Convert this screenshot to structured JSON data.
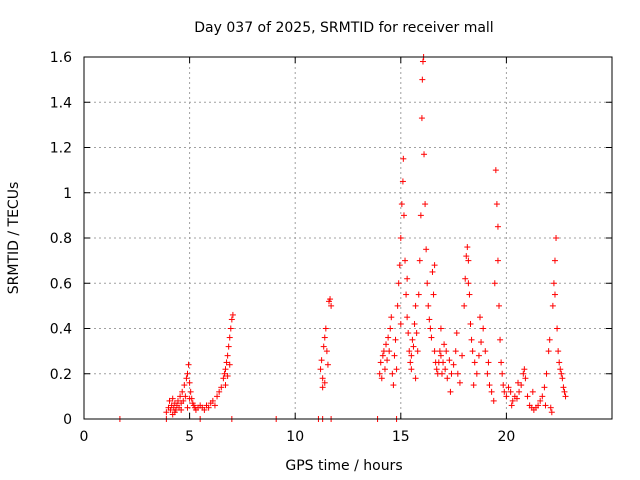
{
  "chart_data": {
    "type": "scatter",
    "title": "Day 037 of 2025, SRMTID for receiver mall",
    "xlabel": "GPS time / hours",
    "ylabel": "SRMTID / TECUs",
    "xlim": [
      0,
      25
    ],
    "ylim": [
      0,
      1.6
    ],
    "xticks": [
      0,
      5,
      10,
      15,
      20
    ],
    "xtick_labels": [
      "0",
      "5",
      "10",
      "15",
      "20"
    ],
    "yticks": [
      0,
      0.2,
      0.4,
      0.6,
      0.8,
      1,
      1.2,
      1.4,
      1.6
    ],
    "ytick_labels": [
      "0",
      "0.2",
      "0.4",
      "0.6",
      "0.8",
      "1",
      "1.2",
      "1.4",
      "1.6"
    ],
    "grid": true,
    "marker": "plus",
    "color": "#ff0000",
    "series": [
      {
        "name": "SRMTID",
        "points": [
          [
            1.7,
            0.0
          ],
          [
            3.9,
            0.0
          ],
          [
            5.5,
            0.0
          ],
          [
            7.0,
            0.0
          ],
          [
            9.1,
            0.0
          ],
          [
            11.1,
            0.0
          ],
          [
            11.3,
            0.0
          ],
          [
            11.7,
            0.0
          ],
          [
            13.9,
            0.0
          ],
          [
            14.8,
            0.0
          ],
          [
            3.9,
            0.03
          ],
          [
            4.0,
            0.05
          ],
          [
            4.05,
            0.08
          ],
          [
            4.1,
            0.04
          ],
          [
            4.15,
            0.06
          ],
          [
            4.2,
            0.09
          ],
          [
            4.25,
            0.05
          ],
          [
            4.3,
            0.07
          ],
          [
            4.35,
            0.04
          ],
          [
            4.4,
            0.06
          ],
          [
            4.45,
            0.08
          ],
          [
            4.5,
            0.05
          ],
          [
            4.55,
            0.1
          ],
          [
            4.6,
            0.07
          ],
          [
            4.65,
            0.12
          ],
          [
            4.7,
            0.08
          ],
          [
            4.75,
            0.15
          ],
          [
            4.8,
            0.1
          ],
          [
            4.85,
            0.18
          ],
          [
            4.9,
            0.2
          ],
          [
            4.95,
            0.24
          ],
          [
            5.0,
            0.16
          ],
          [
            5.05,
            0.12
          ],
          [
            5.1,
            0.09
          ],
          [
            5.15,
            0.07
          ],
          [
            5.2,
            0.06
          ],
          [
            5.25,
            0.05
          ],
          [
            5.3,
            0.04
          ],
          [
            5.4,
            0.05
          ],
          [
            5.5,
            0.06
          ],
          [
            5.6,
            0.05
          ],
          [
            5.7,
            0.04
          ],
          [
            5.8,
            0.06
          ],
          [
            5.9,
            0.05
          ],
          [
            6.0,
            0.07
          ],
          [
            6.1,
            0.08
          ],
          [
            6.2,
            0.06
          ],
          [
            6.3,
            0.1
          ],
          [
            6.4,
            0.12
          ],
          [
            6.5,
            0.14
          ],
          [
            6.6,
            0.18
          ],
          [
            6.65,
            0.2
          ],
          [
            6.7,
            0.22
          ],
          [
            6.75,
            0.25
          ],
          [
            6.8,
            0.28
          ],
          [
            6.85,
            0.32
          ],
          [
            6.9,
            0.36
          ],
          [
            6.95,
            0.4
          ],
          [
            7.0,
            0.44
          ],
          [
            7.05,
            0.46
          ],
          [
            6.7,
            0.15
          ],
          [
            6.8,
            0.19
          ],
          [
            6.9,
            0.24
          ],
          [
            4.2,
            0.02
          ],
          [
            4.3,
            0.03
          ],
          [
            4.6,
            0.04
          ],
          [
            4.9,
            0.05
          ],
          [
            5.0,
            0.09
          ],
          [
            11.2,
            0.22
          ],
          [
            11.25,
            0.26
          ],
          [
            11.3,
            0.18
          ],
          [
            11.35,
            0.32
          ],
          [
            11.4,
            0.36
          ],
          [
            11.45,
            0.4
          ],
          [
            11.5,
            0.3
          ],
          [
            11.55,
            0.24
          ],
          [
            11.4,
            0.16
          ],
          [
            11.3,
            0.14
          ],
          [
            11.6,
            0.52
          ],
          [
            11.65,
            0.53
          ],
          [
            11.7,
            0.5
          ],
          [
            14.0,
            0.2
          ],
          [
            14.05,
            0.25
          ],
          [
            14.1,
            0.18
          ],
          [
            14.15,
            0.28
          ],
          [
            14.2,
            0.3
          ],
          [
            14.25,
            0.22
          ],
          [
            14.3,
            0.33
          ],
          [
            14.35,
            0.26
          ],
          [
            14.4,
            0.36
          ],
          [
            14.45,
            0.3
          ],
          [
            14.5,
            0.4
          ],
          [
            14.55,
            0.45
          ],
          [
            14.6,
            0.2
          ],
          [
            14.65,
            0.15
          ],
          [
            14.7,
            0.28
          ],
          [
            14.75,
            0.35
          ],
          [
            14.8,
            0.22
          ],
          [
            14.85,
            0.5
          ],
          [
            14.9,
            0.6
          ],
          [
            14.95,
            0.68
          ],
          [
            15.0,
            0.8
          ],
          [
            15.05,
            0.95
          ],
          [
            15.1,
            1.05
          ],
          [
            15.12,
            1.15
          ],
          [
            15.15,
            0.9
          ],
          [
            15.2,
            0.7
          ],
          [
            15.25,
            0.55
          ],
          [
            15.3,
            0.45
          ],
          [
            15.35,
            0.38
          ],
          [
            15.4,
            0.3
          ],
          [
            15.45,
            0.25
          ],
          [
            15.5,
            0.28
          ],
          [
            15.55,
            0.35
          ],
          [
            15.6,
            0.32
          ],
          [
            15.65,
            0.42
          ],
          [
            15.7,
            0.5
          ],
          [
            15.75,
            0.38
          ],
          [
            15.8,
            0.3
          ],
          [
            15.85,
            0.55
          ],
          [
            15.9,
            0.7
          ],
          [
            15.95,
            0.9
          ],
          [
            16.0,
            1.33
          ],
          [
            16.02,
            1.5
          ],
          [
            16.05,
            1.58
          ],
          [
            16.08,
            1.6
          ],
          [
            16.1,
            1.17
          ],
          [
            16.15,
            0.95
          ],
          [
            16.2,
            0.75
          ],
          [
            16.25,
            0.6
          ],
          [
            16.3,
            0.5
          ],
          [
            16.35,
            0.44
          ],
          [
            16.4,
            0.4
          ],
          [
            16.45,
            0.36
          ],
          [
            16.5,
            0.65
          ],
          [
            16.55,
            0.55
          ],
          [
            16.6,
            0.3
          ],
          [
            16.65,
            0.25
          ],
          [
            16.7,
            0.22
          ],
          [
            16.75,
            0.2
          ],
          [
            16.8,
            0.25
          ],
          [
            16.85,
            0.3
          ],
          [
            16.9,
            0.28
          ],
          [
            16.95,
            0.2
          ],
          [
            17.0,
            0.25
          ],
          [
            17.1,
            0.22
          ],
          [
            17.2,
            0.18
          ],
          [
            17.3,
            0.26
          ],
          [
            17.4,
            0.2
          ],
          [
            17.5,
            0.24
          ],
          [
            17.6,
            0.3
          ],
          [
            17.7,
            0.2
          ],
          [
            17.8,
            0.16
          ],
          [
            17.9,
            0.28
          ],
          [
            18.0,
            0.5
          ],
          [
            18.05,
            0.62
          ],
          [
            18.1,
            0.72
          ],
          [
            18.15,
            0.76
          ],
          [
            18.2,
            0.7
          ],
          [
            18.25,
            0.55
          ],
          [
            18.3,
            0.42
          ],
          [
            18.35,
            0.35
          ],
          [
            18.4,
            0.3
          ],
          [
            18.5,
            0.25
          ],
          [
            18.6,
            0.2
          ],
          [
            18.7,
            0.28
          ],
          [
            18.8,
            0.34
          ],
          [
            18.9,
            0.4
          ],
          [
            19.0,
            0.3
          ],
          [
            19.1,
            0.2
          ],
          [
            19.2,
            0.15
          ],
          [
            19.3,
            0.12
          ],
          [
            19.4,
            0.08
          ],
          [
            19.45,
            0.6
          ],
          [
            19.5,
            1.1
          ],
          [
            19.55,
            0.95
          ],
          [
            19.6,
            0.7
          ],
          [
            19.65,
            0.5
          ],
          [
            19.7,
            0.35
          ],
          [
            19.75,
            0.25
          ],
          [
            19.8,
            0.2
          ],
          [
            19.85,
            0.15
          ],
          [
            19.9,
            0.12
          ],
          [
            20.0,
            0.1
          ],
          [
            20.1,
            0.14
          ],
          [
            20.2,
            0.12
          ],
          [
            20.3,
            0.08
          ],
          [
            20.4,
            0.1
          ],
          [
            20.5,
            0.09
          ],
          [
            20.6,
            0.12
          ],
          [
            20.7,
            0.15
          ],
          [
            20.8,
            0.2
          ],
          [
            20.85,
            0.22
          ],
          [
            20.9,
            0.18
          ],
          [
            21.0,
            0.1
          ],
          [
            21.1,
            0.06
          ],
          [
            21.2,
            0.05
          ],
          [
            21.3,
            0.04
          ],
          [
            21.4,
            0.05
          ],
          [
            21.5,
            0.06
          ],
          [
            21.6,
            0.08
          ],
          [
            21.7,
            0.1
          ],
          [
            21.8,
            0.14
          ],
          [
            21.9,
            0.2
          ],
          [
            22.0,
            0.3
          ],
          [
            22.05,
            0.35
          ],
          [
            22.1,
            0.05
          ],
          [
            22.15,
            0.03
          ],
          [
            22.2,
            0.5
          ],
          [
            22.25,
            0.6
          ],
          [
            22.3,
            0.7
          ],
          [
            22.35,
            0.8
          ],
          [
            22.4,
            0.4
          ],
          [
            22.45,
            0.3
          ],
          [
            22.5,
            0.25
          ],
          [
            22.55,
            0.22
          ],
          [
            22.6,
            0.2
          ],
          [
            22.65,
            0.18
          ],
          [
            22.7,
            0.14
          ],
          [
            22.75,
            0.12
          ],
          [
            22.8,
            0.1
          ],
          [
            15.5,
            0.22
          ],
          [
            15.7,
            0.18
          ],
          [
            16.9,
            0.4
          ],
          [
            17.05,
            0.33
          ],
          [
            17.35,
            0.12
          ],
          [
            17.65,
            0.38
          ],
          [
            18.45,
            0.15
          ],
          [
            18.75,
            0.45
          ],
          [
            19.15,
            0.25
          ],
          [
            20.25,
            0.06
          ],
          [
            20.55,
            0.16
          ],
          [
            21.25,
            0.12
          ],
          [
            21.85,
            0.06
          ],
          [
            16.6,
            0.68
          ],
          [
            15.0,
            0.42
          ],
          [
            15.3,
            0.62
          ],
          [
            18.2,
            0.6
          ],
          [
            22.3,
            0.55
          ],
          [
            19.6,
            0.85
          ],
          [
            17.15,
            0.3
          ]
        ]
      }
    ]
  }
}
